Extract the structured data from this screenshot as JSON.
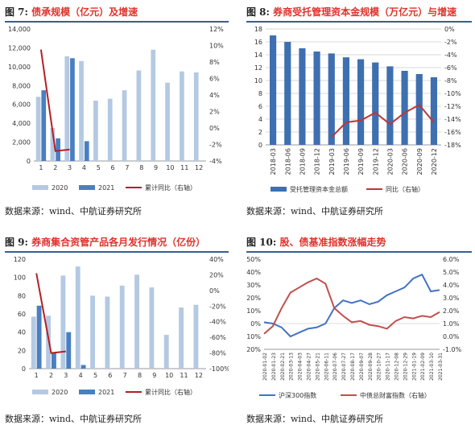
{
  "charts": [
    {
      "label": "图 7:",
      "title": "债承规模（亿元）及增速",
      "source": "数据来源：wind、中航证券研究所",
      "chart_data": {
        "type": "bar",
        "categories": [
          "1",
          "2",
          "3",
          "4",
          "5",
          "6",
          "7",
          "8",
          "9",
          "10",
          "11",
          "12"
        ],
        "series": [
          {
            "name": "2020",
            "kind": "bar",
            "axis": "left",
            "color": "#b4c9e2",
            "values": [
              6800,
              3500,
              11100,
              10600,
              6400,
              6600,
              7500,
              9600,
              11800,
              8300,
              9500,
              9400
            ]
          },
          {
            "name": "2021",
            "kind": "bar",
            "axis": "left",
            "color": "#4a7fc1",
            "values": [
              7500,
              2400,
              10900,
              2100,
              null,
              null,
              null,
              null,
              null,
              null,
              null,
              null
            ]
          },
          {
            "name": "累计同比（右轴）",
            "kind": "line",
            "axis": "right",
            "color": "#b41f24",
            "values": [
              9.5,
              -2.8,
              -2.6,
              null,
              null,
              null,
              null,
              null,
              null,
              null,
              null,
              null
            ]
          }
        ],
        "yleft": {
          "min": 0,
          "max": 14000,
          "ticks": [
            "0",
            "2,000",
            "4,000",
            "6,000",
            "8,000",
            "10,000",
            "12,000",
            "14,000"
          ]
        },
        "yright": {
          "min": -4,
          "max": 12,
          "ticks": [
            "-4%",
            "-2%",
            "0%",
            "2%",
            "4%",
            "6%",
            "8%",
            "10%",
            "12%"
          ]
        }
      }
    },
    {
      "label": "图 8:",
      "title": "券商受托管理资本金规模（万亿元）与增速",
      "source": "数据来源：wind、中航证券研究所",
      "chart_data": {
        "type": "bar",
        "categories": [
          "2018-03",
          "2018-06",
          "2018-09",
          "2018-12",
          "2019-03",
          "2019-06",
          "2019-09",
          "2019-12",
          "2020-03",
          "2020-06",
          "2020-09",
          "2020-12"
        ],
        "series": [
          {
            "name": "受托管理资本金总额",
            "kind": "bar",
            "axis": "left",
            "color": "#3e6fb0",
            "values": [
              17.0,
              16.0,
              15.0,
              14.5,
              14.2,
              13.6,
              13.3,
              12.8,
              12.2,
              11.5,
              11.0,
              10.5
            ]
          },
          {
            "name": "同比（右轴）",
            "kind": "line",
            "axis": "right",
            "color": "#b5393a",
            "values": [
              null,
              null,
              null,
              null,
              -16.8,
              -14.5,
              -14.2,
              -13.0,
              -14.8,
              -13.0,
              -11.8,
              -14.5
            ]
          }
        ],
        "yleft": {
          "min": 0,
          "max": 18,
          "ticks": [
            "0",
            "2",
            "4",
            "6",
            "8",
            "10",
            "12",
            "14",
            "16",
            "18"
          ]
        },
        "yright": {
          "min": -18,
          "max": 0,
          "ticks": [
            "-18%",
            "-16%",
            "-14%",
            "-12%",
            "-10%",
            "-8%",
            "-6%",
            "-4%",
            "-2%",
            "0%"
          ]
        }
      }
    },
    {
      "label": "图 9:",
      "title": "券商集合资管产品各月发行情况（亿份）",
      "source": "数据来源：wind、中航证券研究所",
      "chart_data": {
        "type": "bar",
        "categories": [
          "1",
          "2",
          "3",
          "4",
          "5",
          "6",
          "7",
          "8",
          "9",
          "10",
          "11",
          "12"
        ],
        "series": [
          {
            "name": "2020",
            "kind": "bar",
            "axis": "left",
            "color": "#b4c9e2",
            "values": [
              57,
              58,
              102,
              112,
              80,
              79,
              91,
              103,
              89,
              37,
              67,
              70
            ]
          },
          {
            "name": "2021",
            "kind": "bar",
            "axis": "left",
            "color": "#4a7fc1",
            "values": [
              69,
              18,
              40,
              4,
              null,
              null,
              null,
              null,
              null,
              null,
              null,
              null
            ]
          },
          {
            "name": "累计同比（右轴）",
            "kind": "line",
            "axis": "right",
            "color": "#b41f24",
            "values": [
              22,
              -80,
              -78,
              null,
              null,
              null,
              null,
              null,
              null,
              null,
              null,
              null
            ]
          }
        ],
        "yleft": {
          "min": 0,
          "max": 120,
          "ticks": [
            "0",
            "20",
            "40",
            "60",
            "80",
            "100",
            "120"
          ]
        },
        "yright": {
          "min": -100,
          "max": 40,
          "ticks": [
            "-100%",
            "-80%",
            "-60%",
            "-40%",
            "-20%",
            "0%",
            "20%",
            "40%"
          ]
        }
      }
    },
    {
      "label": "图 10:",
      "title": "股、债基准指数涨幅走势",
      "source": "数据来源：wind、中航证券研究所",
      "chart_data": {
        "type": "line",
        "x": [
          "2020-01-02",
          "2020-01-23",
          "2020-02-21",
          "2020-03-13",
          "2020-04-03",
          "2020-04-27",
          "2020-05-21",
          "2020-06-11",
          "2020-07-06",
          "2020-07-27",
          "2020-08-17",
          "2020-09-07",
          "2020-09-28",
          "2020-10-27",
          "2020-11-17",
          "2020-12-08",
          "2020-12-29",
          "2021-01-19",
          "2021-02-09",
          "2021-03-10",
          "2021-03-31"
        ],
        "series": [
          {
            "name": "沪深300指数",
            "axis": "left",
            "color": "#4472c4",
            "values": [
              1,
              0,
              -3,
              -10,
              -7,
              -4,
              -3,
              0,
              12,
              18,
              16,
              18,
              15,
              17,
              22,
              25,
              28,
              35,
              38,
              25,
              26
            ]
          },
          {
            "name": "中债总财富指数（右轴）",
            "axis": "right",
            "color": "#c0504d",
            "values": [
              0.2,
              0.8,
              2.2,
              3.4,
              3.8,
              4.2,
              4.5,
              4.1,
              2.2,
              1.6,
              1.1,
              1.2,
              0.9,
              0.8,
              0.6,
              1.2,
              1.5,
              1.4,
              1.6,
              1.5,
              1.9
            ]
          }
        ],
        "yleft": {
          "min": -20,
          "max": 50,
          "ticks": [
            "-20%",
            "-10%",
            "0%",
            "10%",
            "20%",
            "30%",
            "40%",
            "50%"
          ]
        },
        "yright": {
          "min": -1,
          "max": 6,
          "ticks": [
            "-1.0%",
            "0.0%",
            "1.0%",
            "2.0%",
            "3.0%",
            "4.0%",
            "5.0%",
            "6.0%"
          ]
        }
      }
    }
  ]
}
